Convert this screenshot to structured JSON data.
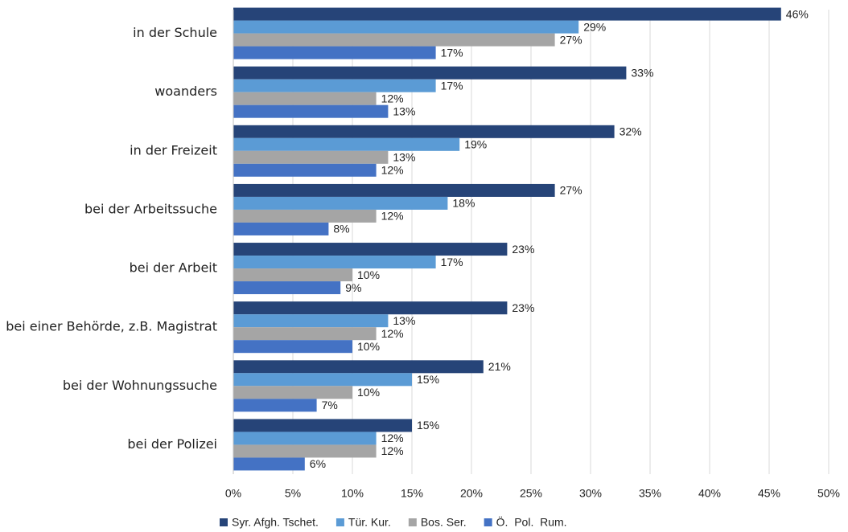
{
  "chart_data": {
    "type": "hbar",
    "categories": [
      "in der Schule",
      "woanders",
      "in der Freizeit",
      "bei der Arbeitssuche",
      "bei der Arbeit",
      "bei einer Behörde, z.B. Magistrat",
      "bei der Wohnungssuche",
      "bei der Polizei"
    ],
    "series": [
      {
        "name": "Syr. Afgh. Tschet.",
        "color": "#264478",
        "values": [
          46,
          33,
          32,
          27,
          23,
          23,
          21,
          15
        ],
        "value_labels": [
          "46%",
          "33%",
          "32%",
          "27%",
          "23%",
          "23%",
          "21%",
          "15%"
        ]
      },
      {
        "name": "Tür. Kur.",
        "color": "#5b9bd5",
        "values": [
          29,
          17,
          19,
          18,
          17,
          13,
          15,
          12
        ],
        "value_labels": [
          "29%",
          "17%",
          "19%",
          "18%",
          "17%",
          "13%",
          "15%",
          "12%"
        ]
      },
      {
        "name": "Bos. Ser.",
        "color": "#a5a5a5",
        "values": [
          27,
          12,
          13,
          12,
          10,
          12,
          10,
          12
        ],
        "value_labels": [
          "27%",
          "12%",
          "13%",
          "12%",
          "10%",
          "12%",
          "10%",
          "12%"
        ]
      },
      {
        "name": "Ö.  Pol.  Rum.",
        "color": "#4472c4",
        "values": [
          17,
          13,
          12,
          8,
          9,
          10,
          7,
          6
        ],
        "value_labels": [
          "17%",
          "13%",
          "12%",
          "8%",
          "9%",
          "10%",
          "7%",
          "6%"
        ]
      }
    ],
    "xlim": [
      0,
      50
    ],
    "xticks": [
      {
        "value": 0,
        "label": "0%"
      },
      {
        "value": 5,
        "label": "5%"
      },
      {
        "value": 10,
        "label": "10%"
      },
      {
        "value": 15,
        "label": "15%"
      },
      {
        "value": 20,
        "label": "20%"
      },
      {
        "value": 25,
        "label": "25%"
      },
      {
        "value": 30,
        "label": "30%"
      },
      {
        "value": 35,
        "label": "35%"
      },
      {
        "value": 40,
        "label": "40%"
      },
      {
        "value": 45,
        "label": "45%"
      },
      {
        "value": 50,
        "label": "50%"
      }
    ],
    "grid": true,
    "legend": "bottom"
  }
}
